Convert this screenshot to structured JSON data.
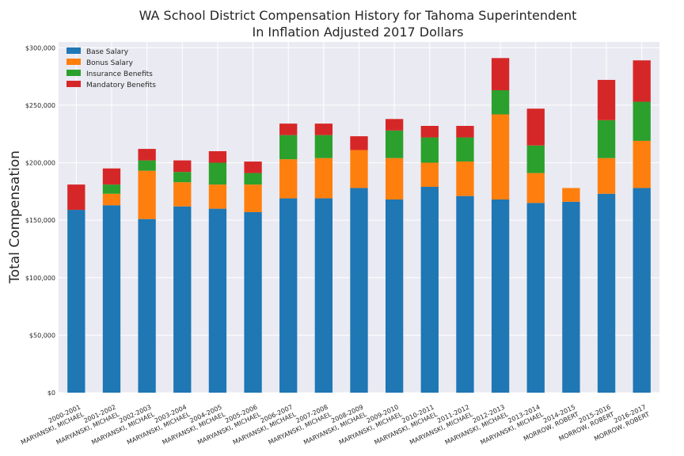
{
  "chart_data": {
    "type": "bar",
    "stacked": true,
    "title": "WA School District Compensation History for Tahoma Superintendent",
    "subtitle": "In Inflation Adjusted 2017 Dollars",
    "xlabel": "",
    "ylabel": "Total Compensation",
    "ylim": [
      0,
      305000
    ],
    "yticks": [
      0,
      50000,
      100000,
      150000,
      200000,
      250000,
      300000
    ],
    "ytick_labels": [
      "$0",
      "$50,000",
      "$100,000",
      "$150,000",
      "$200,000",
      "$250,000",
      "$300,000"
    ],
    "grid": true,
    "legend_position": "top-left",
    "categories": [
      "2000-2001\nMARYANSKI, MICHAEL",
      "2001-2002\nMARYANSKI, MICHAEL",
      "2002-2003\nMARYANSKI, MICHAEL",
      "2003-2004\nMARYANSKI, MICHAEL",
      "2004-2005\nMARYANSKI, MICHAEL",
      "2005-2006\nMARYANSKI, MICHAEL",
      "2006-2007\nMARYANSKI, MICHAEL",
      "2007-2008\nMARYANSKI, MICHAEL",
      "2008-2009\nMARYANSKI, MICHAEL",
      "2009-2010\nMARYANSKI, MICHAEL",
      "2010-2011\nMARYANSKI, MICHAEL",
      "2011-2012\nMARYANSKI, MICHAEL",
      "2012-2013\nMARYANSKI, MICHAEL",
      "2013-2014\nMARYANSKI, MICHAEL",
      "2014-2015\nMORROW, ROBERT",
      "2015-2016\nMORROW, ROBERT",
      "2016-2017\nMORROW, ROBERT"
    ],
    "series": [
      {
        "name": "Base Salary",
        "color": "#1f77b4",
        "values": [
          159000,
          163000,
          151000,
          162000,
          160000,
          157000,
          169000,
          169000,
          178000,
          168000,
          179000,
          171000,
          168000,
          165000,
          166000,
          173000,
          178000
        ]
      },
      {
        "name": "Bonus Salary",
        "color": "#ff7f0e",
        "values": [
          0,
          10000,
          42000,
          21000,
          21000,
          24000,
          34000,
          35000,
          33000,
          36000,
          21000,
          30000,
          74000,
          26000,
          12000,
          31000,
          41000
        ]
      },
      {
        "name": "Insurance Benefits",
        "color": "#2ca02c",
        "values": [
          0,
          8000,
          9000,
          9000,
          19000,
          10000,
          21000,
          20000,
          0,
          24000,
          22000,
          21000,
          21000,
          24000,
          0,
          33000,
          34000
        ]
      },
      {
        "name": "Mandatory Benefits",
        "color": "#d62728",
        "values": [
          22000,
          14000,
          10000,
          10000,
          10000,
          10000,
          10000,
          10000,
          12000,
          10000,
          10000,
          10000,
          28000,
          32000,
          0,
          35000,
          36000
        ]
      }
    ]
  }
}
